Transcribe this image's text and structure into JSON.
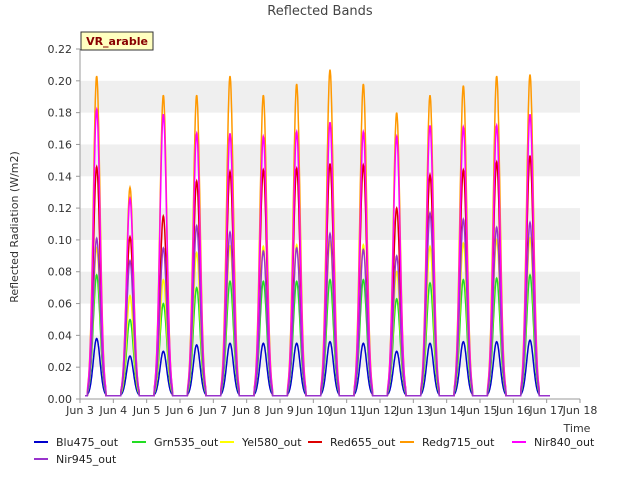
{
  "chart_data": {
    "type": "line",
    "title": "Reflected Bands",
    "ylabel": "Reflected Radiation (W/m2)",
    "xlabel": "Time",
    "badge": "VR_arable",
    "ylim": [
      0.0,
      0.22
    ],
    "yticks": [
      "0.00",
      "0.02",
      "0.04",
      "0.06",
      "0.08",
      "0.10",
      "0.12",
      "0.14",
      "0.16",
      "0.18",
      "0.20",
      "0.22"
    ],
    "xticks": [
      "Jun 3",
      "Jun 4",
      "Jun 5",
      "Jun 6",
      "Jun 7",
      "Jun 8",
      "Jun 9",
      "Jun 10",
      "Jun 11",
      "Jun 12",
      "Jun 13",
      "Jun 14",
      "Jun 15",
      "Jun 16",
      "Jun 17",
      "Jun 18"
    ],
    "xlim_days": [
      3,
      18
    ],
    "grid": "horizontal bands",
    "legend_position": "bottom",
    "day_peaks": {
      "days": [
        3.5,
        4.5,
        5.5,
        6.5,
        7.5,
        8.5,
        9.5,
        10.5,
        11.5,
        12.5,
        13.5,
        14.5,
        15.5,
        16.5
      ],
      "Blu475_out": [
        0.038,
        0.027,
        0.03,
        0.034,
        0.035,
        0.035,
        0.035,
        0.036,
        0.035,
        0.03,
        0.035,
        0.036,
        0.036,
        0.037
      ],
      "Grn535_out": [
        0.078,
        0.05,
        0.06,
        0.07,
        0.074,
        0.074,
        0.074,
        0.075,
        0.075,
        0.063,
        0.073,
        0.075,
        0.076,
        0.078
      ],
      "Yel580_out": [
        0.095,
        0.065,
        0.075,
        0.092,
        0.096,
        0.096,
        0.097,
        0.099,
        0.097,
        0.08,
        0.096,
        0.098,
        0.1,
        0.101
      ],
      "Red655_out": [
        0.146,
        0.102,
        0.115,
        0.137,
        0.143,
        0.144,
        0.145,
        0.148,
        0.147,
        0.12,
        0.141,
        0.144,
        0.149,
        0.153
      ],
      "Redg715_out": [
        0.203,
        0.133,
        0.191,
        0.191,
        0.203,
        0.191,
        0.198,
        0.207,
        0.198,
        0.18,
        0.191,
        0.197,
        0.203,
        0.204
      ],
      "Nir840_out": [
        0.182,
        0.126,
        0.179,
        0.167,
        0.167,
        0.165,
        0.168,
        0.174,
        0.168,
        0.165,
        0.172,
        0.171,
        0.172,
        0.179
      ],
      "Nir945_out": [
        0.101,
        0.087,
        0.095,
        0.109,
        0.105,
        0.093,
        0.095,
        0.104,
        0.094,
        0.09,
        0.117,
        0.113,
        0.108,
        0.111
      ]
    },
    "night_level": 0.002,
    "series": [
      {
        "name": "Blu475_out",
        "color": "#0000cc"
      },
      {
        "name": "Grn535_out",
        "color": "#22dd22"
      },
      {
        "name": "Yel580_out",
        "color": "#ffff00"
      },
      {
        "name": "Red655_out",
        "color": "#dd0000"
      },
      {
        "name": "Redg715_out",
        "color": "#ff9900"
      },
      {
        "name": "Nir840_out",
        "color": "#ff00ff"
      },
      {
        "name": "Nir945_out",
        "color": "#9933cc"
      }
    ]
  }
}
